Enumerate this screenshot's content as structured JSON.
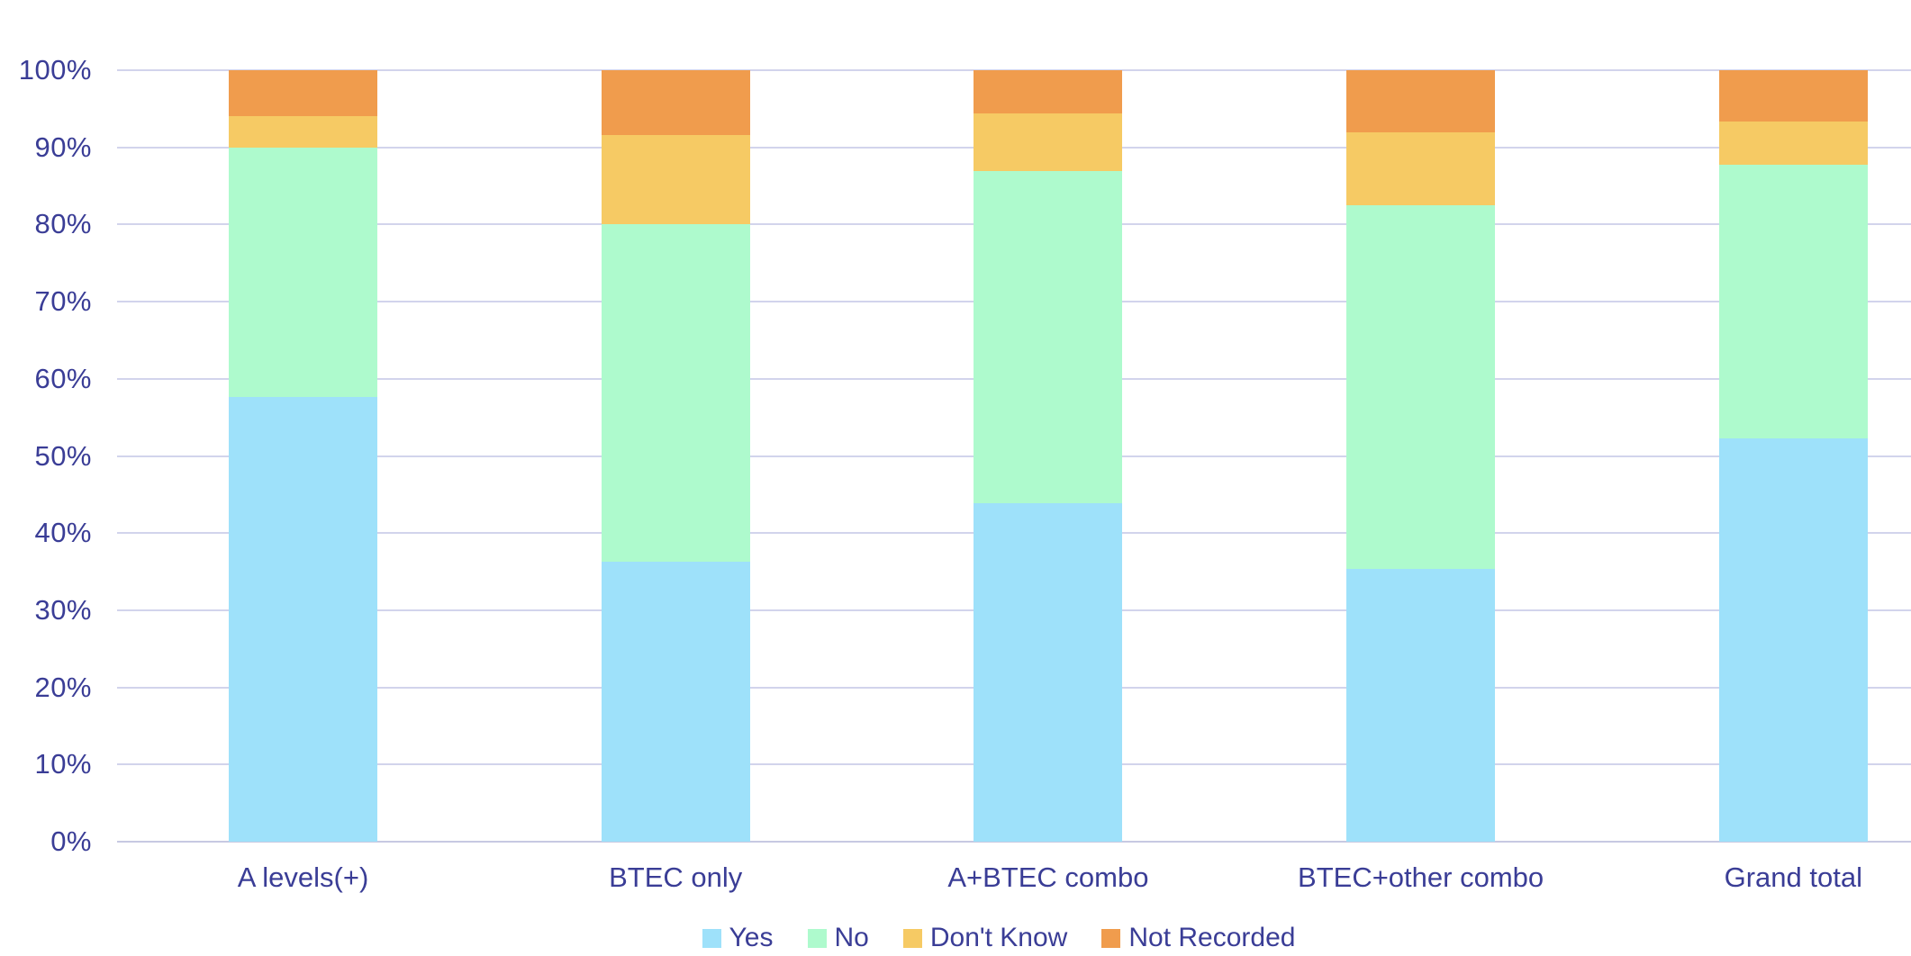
{
  "chart_data": {
    "type": "bar",
    "stacked": true,
    "percent_stacked": true,
    "title": "",
    "xlabel": "",
    "ylabel": "",
    "categories": [
      "A levels(+)",
      "BTEC only",
      "A+BTEC combo",
      "BTEC+other combo",
      "Grand total"
    ],
    "series": [
      {
        "name": "Yes",
        "color": "#9ee1fa",
        "values": [
          57.6,
          36.3,
          43.9,
          35.4,
          52.3
        ]
      },
      {
        "name": "No",
        "color": "#aefacd",
        "values": [
          32.4,
          43.7,
          43.0,
          47.1,
          35.4
        ]
      },
      {
        "name": "Don't Know",
        "color": "#f6ca64",
        "values": [
          4.0,
          11.6,
          7.5,
          9.5,
          5.7
        ]
      },
      {
        "name": "Not Recorded",
        "color": "#f09c4d",
        "values": [
          6.0,
          8.4,
          5.6,
          8.0,
          6.6
        ]
      }
    ],
    "ylim": [
      0,
      100
    ],
    "y_ticks": [
      "0%",
      "10%",
      "20%",
      "30%",
      "40%",
      "50%",
      "60%",
      "70%",
      "80%",
      "90%",
      "100%"
    ],
    "grid": true,
    "legend_position": "bottom"
  },
  "style": {
    "text_color": "#3a3d96",
    "gridline_color": "#d2d4ec",
    "background_color": "#ffffff"
  }
}
